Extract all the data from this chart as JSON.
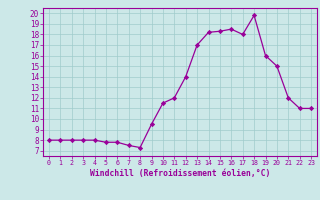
{
  "x": [
    0,
    1,
    2,
    3,
    4,
    5,
    6,
    7,
    8,
    9,
    10,
    11,
    12,
    13,
    14,
    15,
    16,
    17,
    18,
    19,
    20,
    21,
    22,
    23
  ],
  "y": [
    8.0,
    8.0,
    8.0,
    8.0,
    8.0,
    7.8,
    7.8,
    7.5,
    7.3,
    9.5,
    11.5,
    12.0,
    14.0,
    17.0,
    18.2,
    18.3,
    18.5,
    18.0,
    19.8,
    16.0,
    15.0,
    12.0,
    11.0,
    11.0
  ],
  "line_color": "#990099",
  "marker": "D",
  "markersize": 2.2,
  "linewidth": 0.9,
  "bg_color": "#cce8e8",
  "grid_color": "#a0cccc",
  "xlabel": "Windchill (Refroidissement éolien,°C)",
  "xlim": [
    -0.5,
    23.5
  ],
  "ylim": [
    6.5,
    20.5
  ],
  "yticks": [
    7,
    8,
    9,
    10,
    11,
    12,
    13,
    14,
    15,
    16,
    17,
    18,
    19,
    20
  ],
  "xticks": [
    0,
    1,
    2,
    3,
    4,
    5,
    6,
    7,
    8,
    9,
    10,
    11,
    12,
    13,
    14,
    15,
    16,
    17,
    18,
    19,
    20,
    21,
    22,
    23
  ],
  "tick_color": "#990099",
  "label_color": "#990099",
  "spine_color": "#990099",
  "xlabel_fontsize": 5.8,
  "xtick_fontsize": 4.8,
  "ytick_fontsize": 5.5
}
